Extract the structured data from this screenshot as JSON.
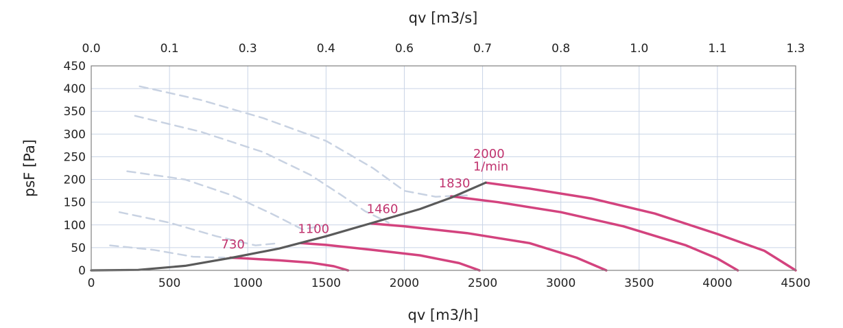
{
  "chart_data": {
    "type": "line",
    "xlabel": "qv [m3/h]",
    "x2label": "qv [m3/s]",
    "ylabel": "psF [Pa]",
    "xlim": [
      0,
      4500
    ],
    "ylim": [
      0,
      450
    ],
    "x_ticks": [
      0,
      500,
      1000,
      1500,
      2000,
      2500,
      3000,
      3500,
      4000,
      4500
    ],
    "y_ticks": [
      0,
      50,
      100,
      150,
      200,
      250,
      300,
      350,
      400,
      450
    ],
    "x2_tick_labels": [
      "0.0",
      "0.1",
      "0.3",
      "0.4",
      "0.6",
      "0.7",
      "0.8",
      "1.0",
      "1.1",
      "1.3"
    ],
    "grid": true,
    "colors": {
      "speed": "#d3437e",
      "system": "#5a5a5a",
      "dashed": "#c8d2e2",
      "label": "#c0336e"
    },
    "series": [
      {
        "name": "730",
        "style": "speed",
        "x": [
          890,
          1000,
          1200,
          1400,
          1550,
          1640
        ],
        "y": [
          28,
          26,
          22,
          17,
          9,
          0
        ]
      },
      {
        "name": "1100",
        "style": "speed",
        "x": [
          1340,
          1500,
          1800,
          2100,
          2350,
          2480
        ],
        "y": [
          60,
          56,
          45,
          33,
          16,
          0
        ]
      },
      {
        "name": "1460",
        "style": "speed",
        "x": [
          1790,
          2000,
          2400,
          2800,
          3100,
          3290
        ],
        "y": [
          103,
          97,
          82,
          60,
          28,
          0
        ]
      },
      {
        "name": "1830",
        "style": "speed",
        "x": [
          2300,
          2600,
          3000,
          3400,
          3800,
          4000,
          4130
        ],
        "y": [
          163,
          150,
          128,
          97,
          55,
          26,
          0
        ]
      },
      {
        "name": "2000",
        "style": "speed",
        "x": [
          2520,
          2800,
          3200,
          3600,
          4000,
          4300,
          4500
        ],
        "y": [
          193,
          180,
          158,
          125,
          80,
          43,
          0
        ]
      },
      {
        "name": "",
        "style": "system",
        "x": [
          0,
          300,
          600,
          900,
          1200,
          1500,
          1800,
          2100,
          2300,
          2520
        ],
        "y": [
          0,
          1,
          10,
          28,
          48,
          75,
          105,
          135,
          160,
          193
        ]
      },
      {
        "name": "",
        "style": "dashed",
        "x": [
          310,
          700,
          1100,
          1500,
          1800,
          2000,
          2200,
          2400
        ],
        "y": [
          405,
          375,
          335,
          285,
          225,
          175,
          162,
          165
        ]
      },
      {
        "name": "",
        "style": "dashed",
        "x": [
          280,
          700,
          1100,
          1400,
          1600,
          1750,
          1900
        ],
        "y": [
          340,
          305,
          260,
          210,
          165,
          130,
          105
        ]
      },
      {
        "name": "",
        "style": "dashed",
        "x": [
          230,
          600,
          900,
          1150,
          1350,
          1500
        ],
        "y": [
          218,
          200,
          165,
          125,
          90,
          100
        ]
      },
      {
        "name": "",
        "style": "dashed",
        "x": [
          180,
          500,
          800,
          1050,
          1200
        ],
        "y": [
          128,
          105,
          75,
          55,
          60
        ]
      },
      {
        "name": "",
        "style": "dashed",
        "x": [
          120,
          400,
          650,
          850
        ],
        "y": [
          55,
          45,
          30,
          28
        ]
      }
    ],
    "annotations": [
      {
        "text": "730",
        "x": 830,
        "y": 48
      },
      {
        "text": "1100",
        "x": 1320,
        "y": 82
      },
      {
        "text": "1460",
        "x": 1760,
        "y": 126
      },
      {
        "text": "1830",
        "x": 2220,
        "y": 183
      },
      {
        "text": "2000",
        "x": 2440,
        "y": 248
      },
      {
        "text": "1/min",
        "x": 2440,
        "y": 220
      }
    ]
  }
}
